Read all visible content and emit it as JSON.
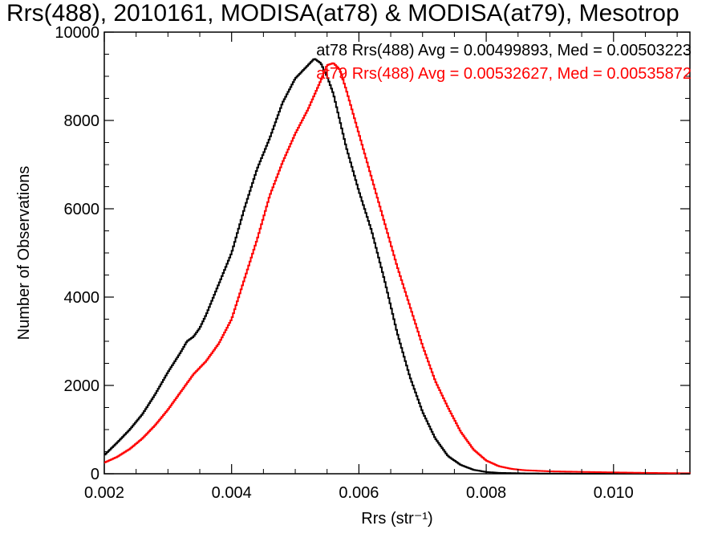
{
  "chart_data": {
    "type": "line",
    "title": "Rrs(488), 2010161, MODISA(at78) & MODISA(at79), Mesotrop",
    "xlabel": "Rrs (str⁻¹)",
    "ylabel": "Number of Observations",
    "xlim": [
      0.002,
      0.0112
    ],
    "ylim": [
      0,
      10000
    ],
    "xticks": [
      "0.002",
      "0.004",
      "0.006",
      "0.008",
      "0.010"
    ],
    "yticks": [
      "0",
      "2000",
      "4000",
      "6000",
      "8000",
      "10000"
    ],
    "grid": false,
    "legend_position": "top-right",
    "step": true,
    "series": [
      {
        "name": "at78",
        "legend_text": "at78 Rrs(488) Avg = 0.00499893, Med = 0.00503223",
        "color": "#000000",
        "points": [
          [
            0.002,
            420
          ],
          [
            0.0022,
            700
          ],
          [
            0.0024,
            1000
          ],
          [
            0.0026,
            1350
          ],
          [
            0.0028,
            1800
          ],
          [
            0.003,
            2300
          ],
          [
            0.0032,
            2750
          ],
          [
            0.0033,
            3000
          ],
          [
            0.0034,
            3100
          ],
          [
            0.0035,
            3300
          ],
          [
            0.0036,
            3600
          ],
          [
            0.0038,
            4300
          ],
          [
            0.004,
            5000
          ],
          [
            0.0042,
            6000
          ],
          [
            0.0044,
            6900
          ],
          [
            0.0046,
            7600
          ],
          [
            0.0048,
            8400
          ],
          [
            0.005,
            8950
          ],
          [
            0.0052,
            9250
          ],
          [
            0.0053,
            9400
          ],
          [
            0.0054,
            9300
          ],
          [
            0.0055,
            9000
          ],
          [
            0.0056,
            8600
          ],
          [
            0.0057,
            8000
          ],
          [
            0.0058,
            7400
          ],
          [
            0.006,
            6400
          ],
          [
            0.0062,
            5500
          ],
          [
            0.0064,
            4400
          ],
          [
            0.0066,
            3200
          ],
          [
            0.0068,
            2200
          ],
          [
            0.007,
            1400
          ],
          [
            0.0072,
            800
          ],
          [
            0.0074,
            400
          ],
          [
            0.0076,
            200
          ],
          [
            0.0078,
            90
          ],
          [
            0.008,
            40
          ],
          [
            0.0082,
            20
          ],
          [
            0.0086,
            8
          ],
          [
            0.009,
            4
          ],
          [
            0.01,
            2
          ],
          [
            0.0112,
            0
          ]
        ]
      },
      {
        "name": "at79",
        "legend_text": "at79 Rrs(488) Avg = 0.00532627, Med = 0.00535872",
        "color": "#ff0000",
        "points": [
          [
            0.002,
            250
          ],
          [
            0.0022,
            380
          ],
          [
            0.0024,
            560
          ],
          [
            0.0026,
            800
          ],
          [
            0.0028,
            1100
          ],
          [
            0.003,
            1450
          ],
          [
            0.0032,
            1850
          ],
          [
            0.0034,
            2250
          ],
          [
            0.0035,
            2400
          ],
          [
            0.0036,
            2550
          ],
          [
            0.0038,
            2950
          ],
          [
            0.004,
            3500
          ],
          [
            0.0042,
            4400
          ],
          [
            0.0044,
            5300
          ],
          [
            0.0046,
            6300
          ],
          [
            0.0048,
            7050
          ],
          [
            0.005,
            7700
          ],
          [
            0.0052,
            8250
          ],
          [
            0.0054,
            8900
          ],
          [
            0.0055,
            9250
          ],
          [
            0.0056,
            9300
          ],
          [
            0.0057,
            9150
          ],
          [
            0.0058,
            8700
          ],
          [
            0.006,
            7700
          ],
          [
            0.0062,
            6700
          ],
          [
            0.0064,
            5700
          ],
          [
            0.0066,
            4700
          ],
          [
            0.0068,
            3800
          ],
          [
            0.007,
            2900
          ],
          [
            0.0072,
            2100
          ],
          [
            0.0074,
            1500
          ],
          [
            0.0076,
            950
          ],
          [
            0.0078,
            550
          ],
          [
            0.008,
            300
          ],
          [
            0.0082,
            170
          ],
          [
            0.0084,
            110
          ],
          [
            0.0086,
            80
          ],
          [
            0.009,
            55
          ],
          [
            0.0094,
            45
          ],
          [
            0.01,
            30
          ],
          [
            0.0106,
            18
          ],
          [
            0.0112,
            10
          ]
        ]
      }
    ]
  }
}
